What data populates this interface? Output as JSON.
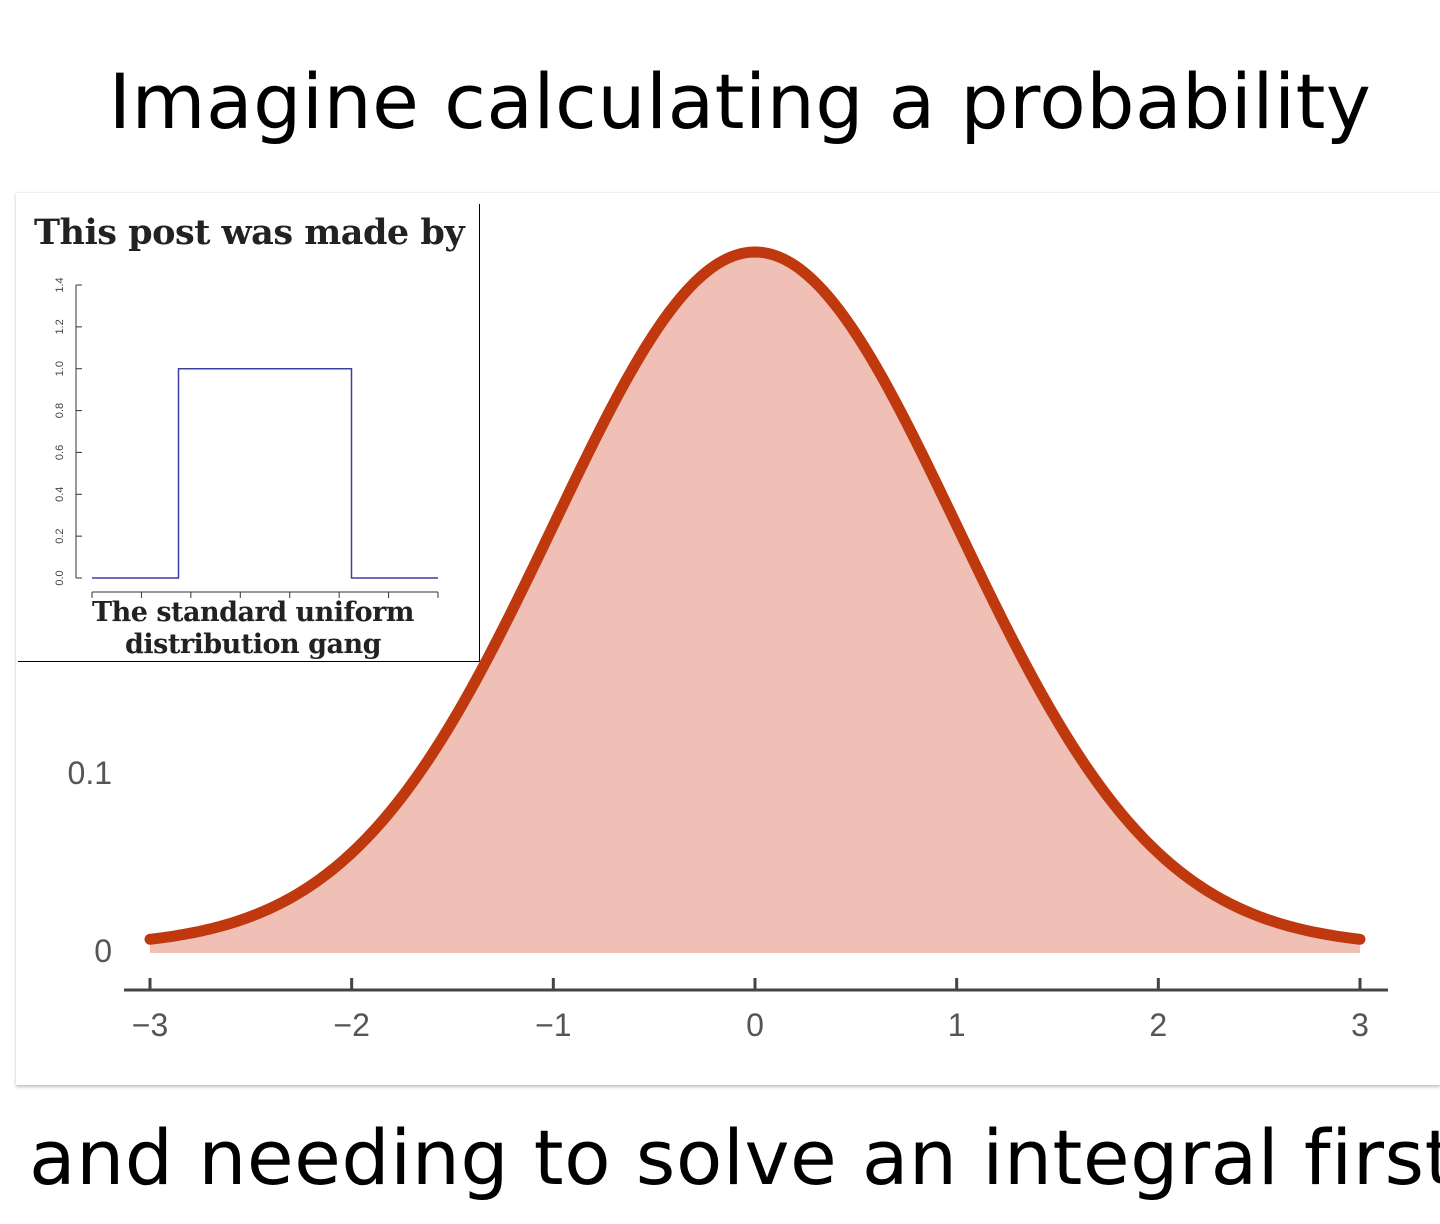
{
  "captions": {
    "top": "Imagine calculating a probability",
    "bottom": "and needing to solve an integral first"
  },
  "inset": {
    "title": "This post was made by",
    "caption_line1": "The standard uniform",
    "caption_line2": "distribution gang"
  },
  "colors": {
    "curve": "#c0390e",
    "fill": "#f0c0b7",
    "axis": "#444444",
    "tick_label": "#555555",
    "uniform_line": "#3f3fa3"
  },
  "chart_data": [
    {
      "type": "area",
      "title": "",
      "xlabel": "",
      "ylabel": "",
      "distribution": "standard normal",
      "x": [
        -3,
        -2.5,
        -2,
        -1.5,
        -1,
        -0.5,
        0,
        0.5,
        1,
        1.5,
        2,
        2.5,
        3
      ],
      "y": [
        0.0044,
        0.0175,
        0.054,
        0.1295,
        0.242,
        0.3521,
        0.3989,
        0.3521,
        0.242,
        0.1295,
        0.054,
        0.0175,
        0.0044
      ],
      "xlim": [
        -3,
        3
      ],
      "x_ticks": [
        "−3",
        "−2",
        "−1",
        "0",
        "1",
        "2",
        "3"
      ],
      "y_ticks": [
        "0",
        "0.1"
      ],
      "grid": false,
      "legend": "none"
    },
    {
      "type": "line",
      "title": "",
      "xlabel": "",
      "ylabel": "",
      "distribution": "standard uniform",
      "x": [
        -0.5,
        0,
        0,
        1,
        1,
        1.5
      ],
      "y": [
        0,
        0,
        1,
        1,
        0,
        0
      ],
      "ylim": [
        0,
        1.4
      ],
      "y_ticks": [
        "0.0",
        "0.2",
        "0.4",
        "0.6",
        "0.8",
        "1.0",
        "1.2",
        "1.4"
      ],
      "grid": false,
      "legend": "none"
    }
  ]
}
